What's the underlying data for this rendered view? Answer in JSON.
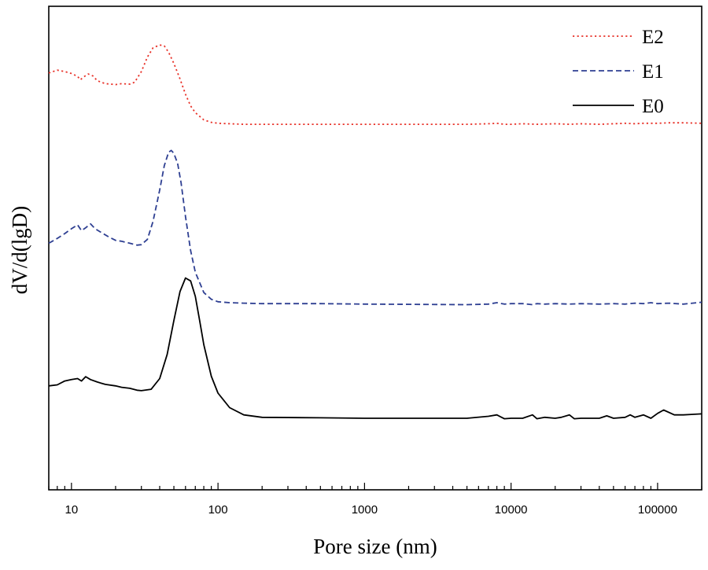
{
  "chart_data": {
    "type": "line",
    "title": "",
    "xlabel": "Pore size (nm)",
    "ylabel": "dV/d(lgD)",
    "xscale": "log",
    "xlim": [
      7,
      200000
    ],
    "ylim": [
      0,
      100
    ],
    "yticks_shown": false,
    "xticks": [
      10,
      100,
      1000,
      10000,
      100000
    ],
    "xtick_labels": [
      "10",
      "100",
      "1000",
      "10000",
      "100000"
    ],
    "legend_position": "top-right",
    "series": [
      {
        "name": "E2",
        "color": "#e8332a",
        "dash": "dotted",
        "x": [
          7,
          8,
          9,
          10,
          11,
          11.5,
          12,
          13,
          14,
          15,
          17,
          20,
          22,
          25,
          27,
          30,
          33,
          36,
          40,
          43,
          46,
          50,
          55,
          60,
          65,
          70,
          80,
          90,
          100,
          120,
          150,
          200,
          500,
          1000,
          5000,
          7000,
          8000,
          9000,
          10000,
          12000,
          15000,
          20000,
          25000,
          30000,
          40000,
          50000,
          60000,
          70000,
          80000,
          100000,
          120000,
          150000,
          200000
        ],
        "y": [
          86.2,
          86.8,
          86.5,
          86.1,
          85.5,
          84.8,
          85.3,
          86.0,
          85.6,
          84.6,
          84.0,
          83.8,
          84.0,
          83.9,
          84.3,
          86.5,
          89.5,
          91.4,
          92.0,
          91.8,
          90.5,
          88.2,
          85.0,
          81.8,
          79.4,
          78.0,
          76.5,
          76.0,
          75.8,
          75.7,
          75.6,
          75.6,
          75.6,
          75.6,
          75.6,
          75.7,
          75.8,
          75.6,
          75.6,
          75.7,
          75.6,
          75.7,
          75.6,
          75.7,
          75.6,
          75.7,
          75.8,
          75.7,
          75.8,
          75.8,
          75.9,
          75.9,
          75.8
        ]
      },
      {
        "name": "E1",
        "color": "#2e3f92",
        "dash": "dashed",
        "x": [
          7,
          8,
          9,
          10,
          11,
          11.7,
          12.5,
          13.5,
          14.5,
          16,
          18,
          20,
          22,
          25,
          28,
          30,
          33,
          36,
          40,
          43,
          46,
          48,
          50,
          53,
          56,
          60,
          65,
          70,
          80,
          90,
          100,
          120,
          150,
          200,
          500,
          1000,
          5000,
          7000,
          8000,
          9000,
          10000,
          12000,
          14000,
          15000,
          17000,
          20000,
          25000,
          30000,
          40000,
          50000,
          60000,
          70000,
          80000,
          90000,
          100000,
          120000,
          150000,
          200000
        ],
        "y": [
          51.0,
          52.0,
          53.0,
          54.0,
          54.8,
          53.6,
          54.2,
          55.0,
          54.0,
          53.2,
          52.3,
          51.6,
          51.4,
          51.0,
          50.6,
          50.7,
          51.8,
          55.5,
          62.0,
          67.0,
          69.8,
          70.2,
          69.6,
          67.5,
          63.5,
          56.5,
          49.5,
          45.0,
          40.8,
          39.4,
          38.9,
          38.7,
          38.6,
          38.5,
          38.5,
          38.4,
          38.3,
          38.4,
          38.7,
          38.4,
          38.5,
          38.5,
          38.3,
          38.5,
          38.4,
          38.5,
          38.4,
          38.5,
          38.4,
          38.5,
          38.4,
          38.6,
          38.5,
          38.7,
          38.5,
          38.6,
          38.4,
          38.8
        ]
      },
      {
        "name": "E0",
        "color": "#000000",
        "dash": "solid",
        "x": [
          7,
          8,
          9,
          10,
          11,
          11.7,
          12.5,
          13.5,
          15,
          17,
          20,
          22,
          25,
          28,
          30,
          35,
          40,
          45,
          50,
          55,
          60,
          65,
          70,
          75,
          80,
          90,
          100,
          120,
          150,
          200,
          500,
          1000,
          5000,
          7000,
          8000,
          9000,
          10000,
          12000,
          14000,
          15000,
          17000,
          20000,
          22000,
          25000,
          27000,
          30000,
          40000,
          45000,
          50000,
          60000,
          65000,
          70000,
          80000,
          90000,
          100000,
          110000,
          130000,
          150000,
          170000,
          200000
        ],
        "y": [
          21.5,
          21.7,
          22.5,
          22.8,
          23.0,
          22.5,
          23.4,
          22.8,
          22.3,
          21.8,
          21.5,
          21.2,
          21.0,
          20.6,
          20.5,
          20.8,
          23.0,
          28.0,
          35.0,
          41.0,
          43.8,
          43.2,
          40.0,
          35.0,
          30.0,
          23.5,
          20.0,
          17.0,
          15.5,
          15.0,
          14.9,
          14.8,
          14.8,
          15.2,
          15.5,
          14.7,
          14.8,
          14.8,
          15.5,
          14.7,
          15.0,
          14.8,
          15.0,
          15.5,
          14.7,
          14.8,
          14.8,
          15.3,
          14.8,
          15.0,
          15.5,
          15.0,
          15.5,
          14.8,
          15.8,
          16.5,
          15.5,
          15.5,
          15.6,
          15.7
        ]
      }
    ]
  }
}
